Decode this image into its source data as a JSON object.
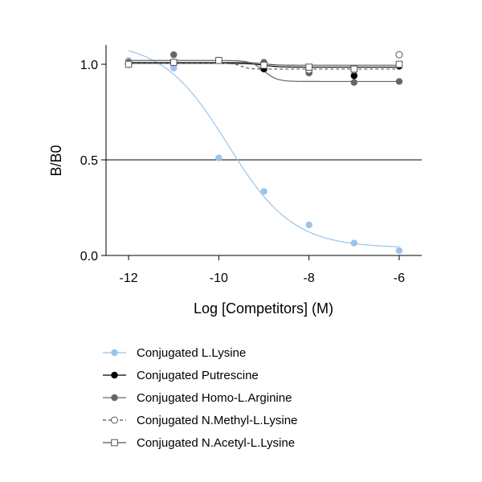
{
  "chart_data": {
    "type": "scatter",
    "title": "",
    "xlabel": "Log [Competitors] (M)",
    "ylabel": "B/B0",
    "xlim": [
      -12.5,
      -5.5
    ],
    "ylim": [
      0.0,
      1.1
    ],
    "x_ticks": [
      -12,
      -10,
      -8,
      -6
    ],
    "y_ticks": [
      0.0,
      0.5,
      1.0
    ],
    "x_tick_labels": [
      "-12",
      "-10",
      "-8",
      "-6"
    ],
    "y_tick_labels": [
      "0.0",
      "0.5",
      "1.0"
    ],
    "reference_line_y": 0.5,
    "grid": false,
    "legend_placement": "bottom",
    "series": [
      {
        "name": "Conjugated L.Lysine",
        "color": "#9cc3ec",
        "marker": "filled-circle",
        "line_style": "solid",
        "x": [
          -12,
          -11,
          -10,
          -9,
          -8,
          -7,
          -6
        ],
        "y": [
          1.02,
          0.98,
          0.51,
          0.335,
          0.16,
          0.065,
          0.025
        ],
        "fit": {
          "top": 1.12,
          "bottom": 0.04,
          "log_ec50": -9.8,
          "hill": 0.6
        }
      },
      {
        "name": "Conjugated Putrescine",
        "color": "#000000",
        "marker": "filled-circle",
        "line_style": "solid",
        "x": [
          -12,
          -11,
          -10,
          -9,
          -8,
          -7,
          -6
        ],
        "y": [
          1.0,
          1.01,
          1.02,
          0.975,
          0.955,
          0.94,
          0.99
        ],
        "fit": {
          "top": 1.005,
          "bottom": 0.985,
          "log_ec50": -9.0,
          "hill": 2.5
        }
      },
      {
        "name": "Conjugated Homo-L.Arginine",
        "color": "#666666",
        "marker": "filled-circle",
        "line_style": "solid",
        "x": [
          -12,
          -11,
          -10,
          -9,
          -8,
          -7,
          -6
        ],
        "y": [
          1.01,
          1.05,
          1.02,
          1.01,
          0.955,
          0.905,
          0.91
        ],
        "fit": {
          "top": 1.02,
          "bottom": 0.91,
          "log_ec50": -9.0,
          "hill": 3.0
        }
      },
      {
        "name": "Conjugated N.Methyl-L.Lysine",
        "color": "#555555",
        "marker": "open-circle",
        "line_style": "dashed",
        "x": [
          -12,
          -11,
          -10,
          -9,
          -8,
          -7,
          -6
        ],
        "y": [
          1.0,
          1.01,
          1.02,
          0.995,
          0.97,
          0.97,
          1.05
        ],
        "fit": {
          "top": 1.005,
          "bottom": 0.975,
          "log_ec50": -9.5,
          "hill": 5.0
        }
      },
      {
        "name": "Conjugated N.Acetyl-L.Lysine",
        "color": "#555555",
        "marker": "open-square",
        "line_style": "solid",
        "x": [
          -12,
          -11,
          -10,
          -9,
          -8,
          -7,
          -6
        ],
        "y": [
          1.0,
          1.01,
          1.02,
          0.995,
          0.985,
          0.975,
          1.0
        ],
        "fit": {
          "top": 1.01,
          "bottom": 0.995,
          "log_ec50": -9.0,
          "hill": 3.0
        }
      }
    ]
  }
}
